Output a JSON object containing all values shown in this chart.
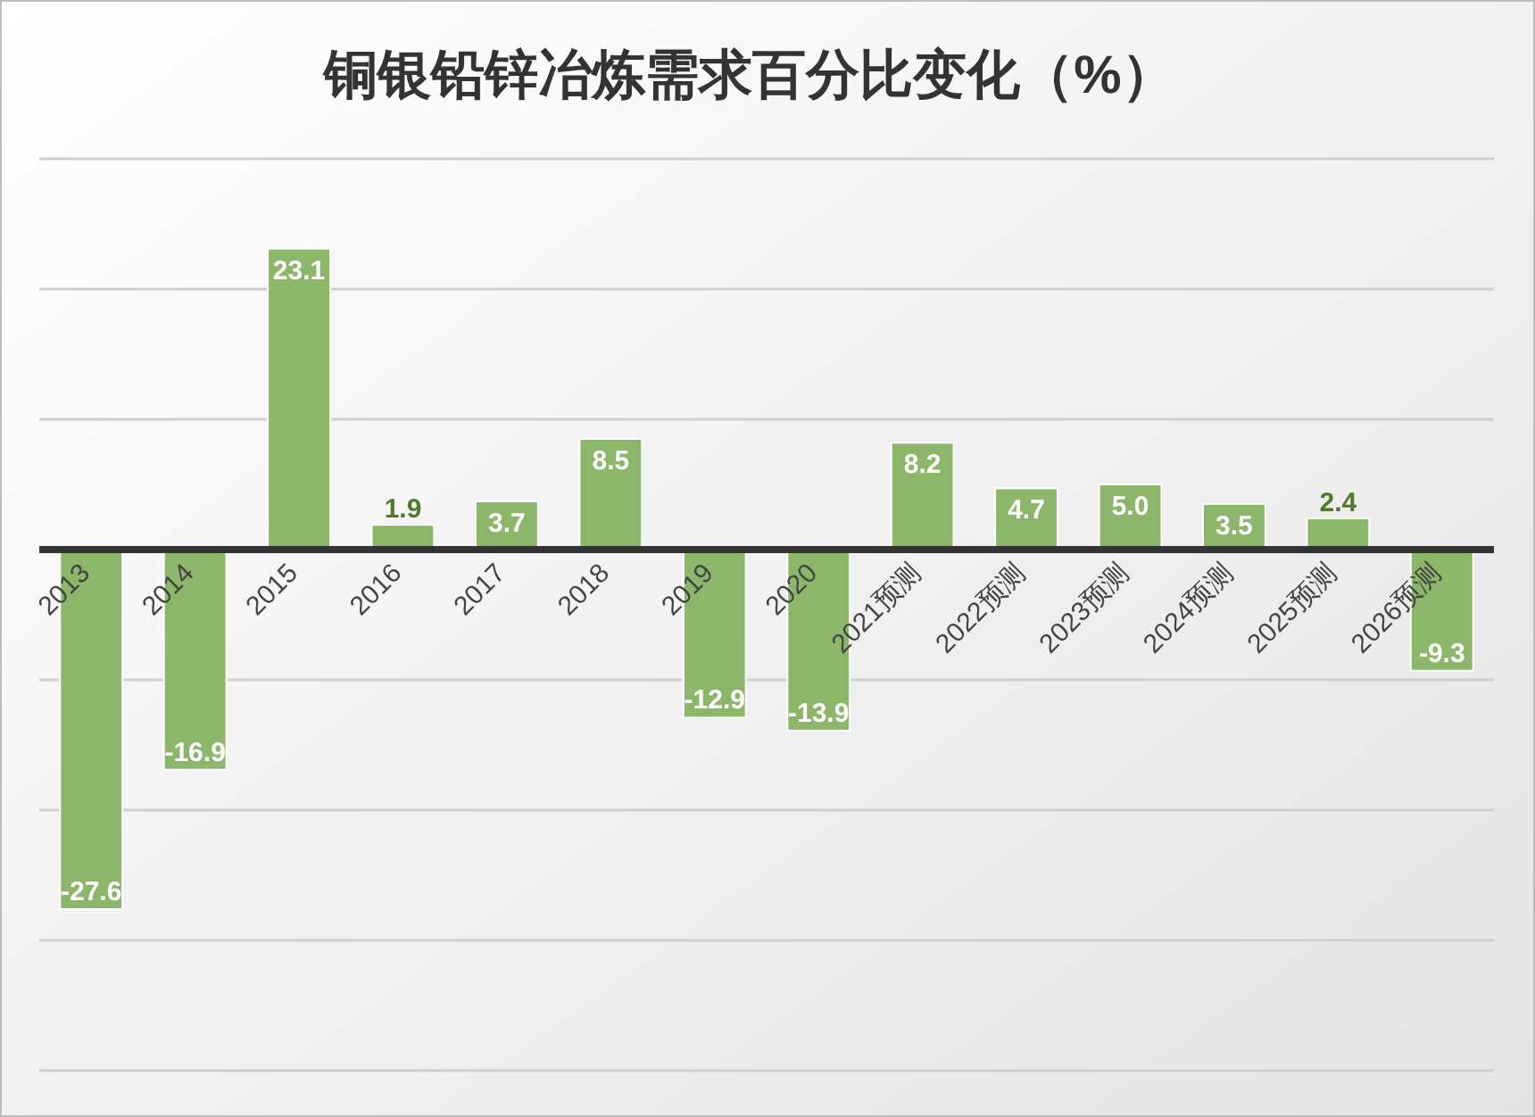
{
  "chart_data": {
    "type": "bar",
    "title": "铜银铅锌冶炼需求百分比变化（%）",
    "categories": [
      "2013",
      "2014",
      "2015",
      "2016",
      "2017",
      "2018",
      "2019",
      "2020",
      "2021预测",
      "2022预测",
      "2023预测",
      "2024预测",
      "2025预测",
      "2026预测"
    ],
    "values": [
      -27.6,
      -16.9,
      23.1,
      1.9,
      3.7,
      8.5,
      -12.9,
      -13.9,
      8.2,
      4.7,
      5.0,
      3.5,
      2.4,
      -9.3
    ],
    "color": "#8cb66a",
    "ylim": [
      -40,
      30
    ],
    "yticks": [
      {
        "value": -40,
        "label": null
      },
      {
        "value": -30,
        "label": null
      },
      {
        "value": -20,
        "label": null
      },
      {
        "value": -10,
        "label": null
      },
      {
        "value": 0,
        "label": null
      },
      {
        "value": 10,
        "label": null
      },
      {
        "value": 20,
        "label": null
      },
      {
        "value": 30,
        "label": null
      }
    ],
    "grid": "y",
    "value_labels": [
      "-27.6",
      "-16.9",
      "23.1",
      "1.9",
      "3.7",
      "8.5",
      "-12.9",
      "-13.9",
      "8.2",
      "4.7",
      "5.0",
      "3.5",
      "2.4",
      "-9.3"
    ]
  }
}
